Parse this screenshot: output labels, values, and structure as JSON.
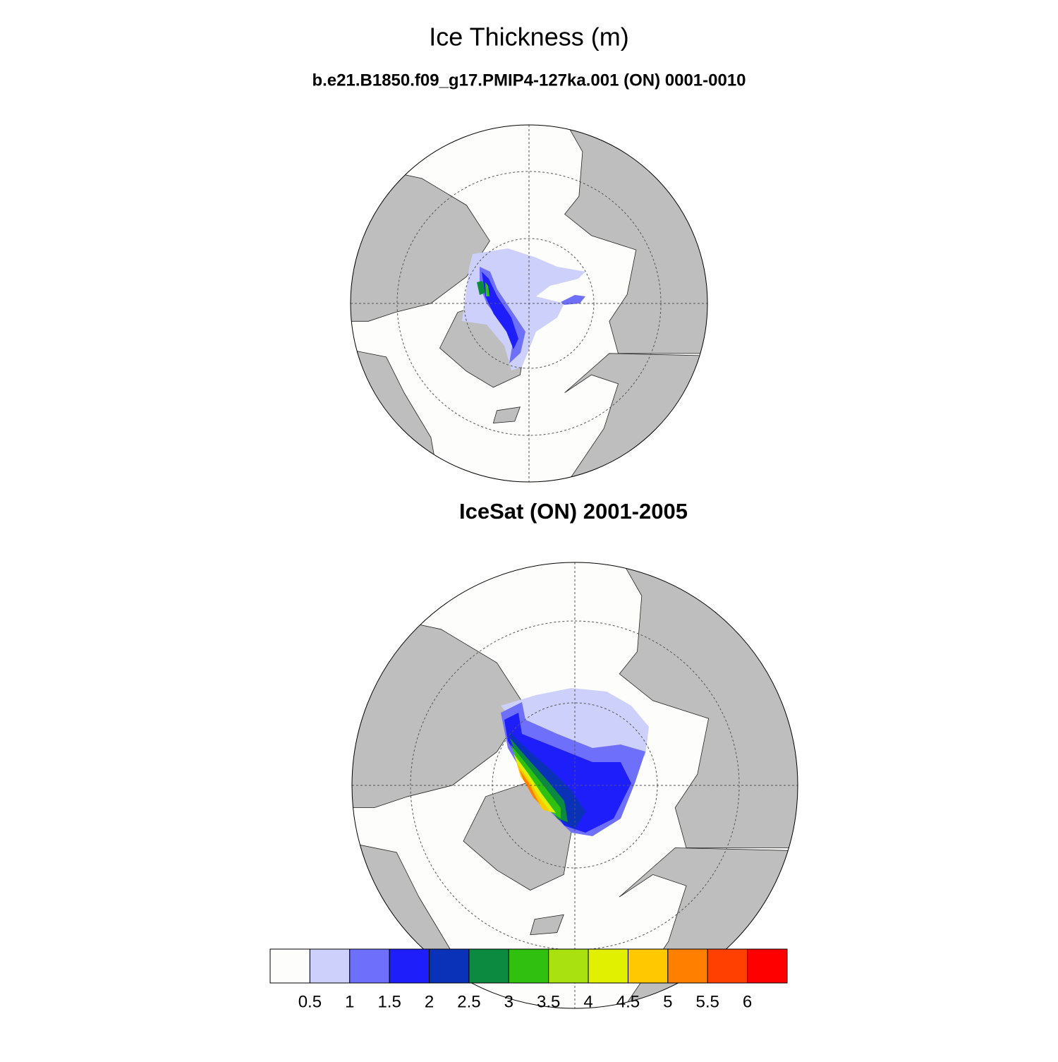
{
  "title": "Ice Thickness (m)",
  "panels": [
    {
      "subtitle": "b.e21.B1850.f09_g17.PMIP4-127ka.001 (ON) 0001-0010"
    },
    {
      "subtitle": "IceSat (ON) 2001-2005"
    }
  ],
  "colorbar": {
    "levels": [
      0.5,
      1,
      1.5,
      2,
      2.5,
      3,
      3.5,
      4,
      4.5,
      5,
      5.5,
      6
    ],
    "colors": [
      "#fdfdfb",
      "#cdd0fb",
      "#6e6ffb",
      "#1e1efb",
      "#0a32b8",
      "#0b8a40",
      "#30c010",
      "#a8e010",
      "#e0f000",
      "#ffc800",
      "#ff8000",
      "#ff4000",
      "#ff0000"
    ]
  }
}
